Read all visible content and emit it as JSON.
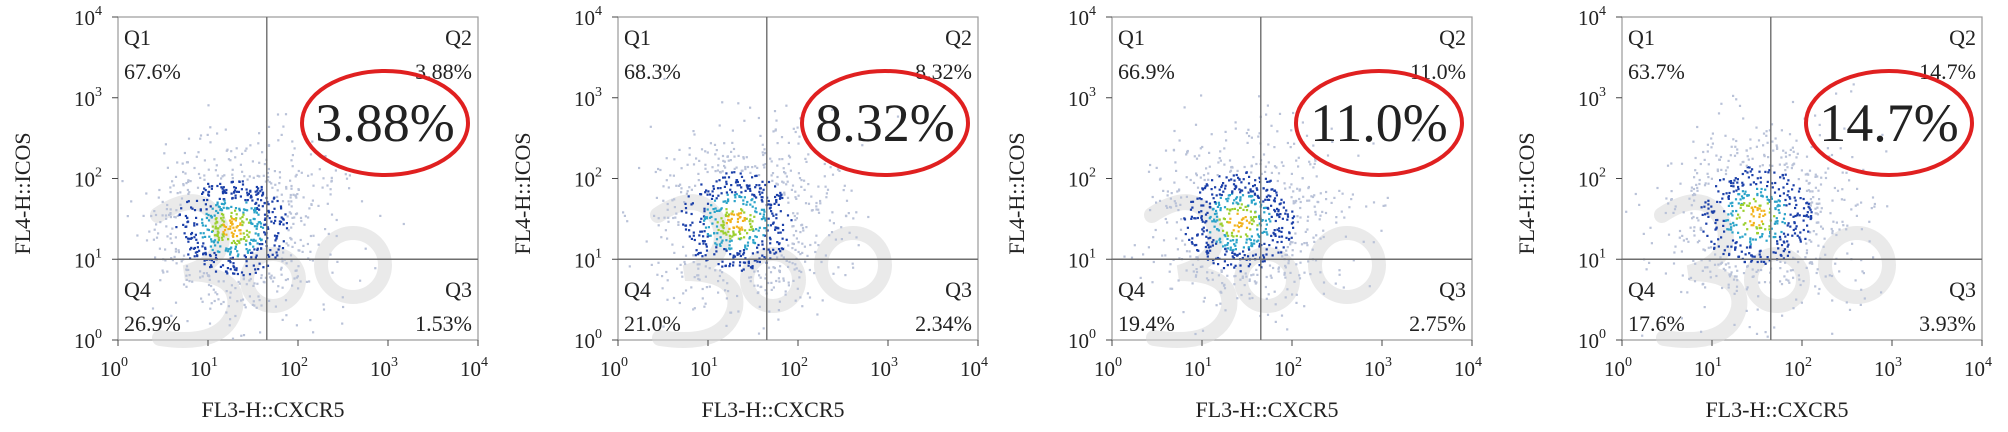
{
  "chart_data": [
    {
      "type": "scatter",
      "scale": "log",
      "xlabel": "FL3-H::CXCR5",
      "ylabel": "FL4-H::ICOS",
      "xlim": [
        1,
        10000
      ],
      "ylim": [
        1,
        10000
      ],
      "x_ticks": [
        {
          "base": "10",
          "exp": "0"
        },
        {
          "base": "10",
          "exp": "1"
        },
        {
          "base": "10",
          "exp": "2"
        },
        {
          "base": "10",
          "exp": "3"
        },
        {
          "base": "10",
          "exp": "4"
        }
      ],
      "y_ticks": [
        {
          "base": "10",
          "exp": "0"
        },
        {
          "base": "10",
          "exp": "1"
        },
        {
          "base": "10",
          "exp": "2"
        },
        {
          "base": "10",
          "exp": "3"
        },
        {
          "base": "10",
          "exp": "4"
        }
      ],
      "gate": {
        "x": 45,
        "y": 10
      },
      "quadrants": [
        {
          "id": "Q1",
          "value": "67.6%"
        },
        {
          "id": "Q2",
          "value": "3.88%"
        },
        {
          "id": "Q4",
          "value": "26.9%"
        },
        {
          "id": "Q3",
          "value": "1.53%"
        }
      ],
      "highlight": "3.88%",
      "cluster": {
        "x": 18,
        "y": 25,
        "n": 900,
        "spread": 0.42
      }
    },
    {
      "type": "scatter",
      "scale": "log",
      "xlabel": "FL3-H::CXCR5",
      "ylabel": "FL4-H::ICOS",
      "xlim": [
        1,
        10000
      ],
      "ylim": [
        1,
        10000
      ],
      "x_ticks": [
        {
          "base": "10",
          "exp": "0"
        },
        {
          "base": "10",
          "exp": "1"
        },
        {
          "base": "10",
          "exp": "2"
        },
        {
          "base": "10",
          "exp": "3"
        },
        {
          "base": "10",
          "exp": "4"
        }
      ],
      "y_ticks": [
        {
          "base": "10",
          "exp": "0"
        },
        {
          "base": "10",
          "exp": "1"
        },
        {
          "base": "10",
          "exp": "2"
        },
        {
          "base": "10",
          "exp": "3"
        },
        {
          "base": "10",
          "exp": "4"
        }
      ],
      "gate": {
        "x": 45,
        "y": 10
      },
      "quadrants": [
        {
          "id": "Q1",
          "value": "68.3%"
        },
        {
          "id": "Q2",
          "value": "8.32%"
        },
        {
          "id": "Q4",
          "value": "21.0%"
        },
        {
          "id": "Q3",
          "value": "2.34%"
        }
      ],
      "highlight": "8.32%",
      "cluster": {
        "x": 20,
        "y": 30,
        "n": 850,
        "spread": 0.45
      }
    },
    {
      "type": "scatter",
      "scale": "log",
      "xlabel": "FL3-H::CXCR5",
      "ylabel": "FL4-H::ICOS",
      "xlim": [
        1,
        10000
      ],
      "ylim": [
        1,
        10000
      ],
      "x_ticks": [
        {
          "base": "10",
          "exp": "0"
        },
        {
          "base": "10",
          "exp": "1"
        },
        {
          "base": "10",
          "exp": "2"
        },
        {
          "base": "10",
          "exp": "3"
        },
        {
          "base": "10",
          "exp": "4"
        }
      ],
      "y_ticks": [
        {
          "base": "10",
          "exp": "0"
        },
        {
          "base": "10",
          "exp": "1"
        },
        {
          "base": "10",
          "exp": "2"
        },
        {
          "base": "10",
          "exp": "3"
        },
        {
          "base": "10",
          "exp": "4"
        }
      ],
      "gate": {
        "x": 45,
        "y": 10
      },
      "quadrants": [
        {
          "id": "Q1",
          "value": "66.9%"
        },
        {
          "id": "Q2",
          "value": "11.0%"
        },
        {
          "id": "Q4",
          "value": "19.4%"
        },
        {
          "id": "Q3",
          "value": "2.75%"
        }
      ],
      "highlight": "11.0%",
      "cluster": {
        "x": 25,
        "y": 30,
        "n": 850,
        "spread": 0.45
      }
    },
    {
      "type": "scatter",
      "scale": "log",
      "xlabel": "FL3-H::CXCR5",
      "ylabel": "FL4-H::ICOS",
      "xlim": [
        1,
        10000
      ],
      "ylim": [
        1,
        10000
      ],
      "x_ticks": [
        {
          "base": "10",
          "exp": "0"
        },
        {
          "base": "10",
          "exp": "1"
        },
        {
          "base": "10",
          "exp": "2"
        },
        {
          "base": "10",
          "exp": "3"
        },
        {
          "base": "10",
          "exp": "4"
        }
      ],
      "y_ticks": [
        {
          "base": "10",
          "exp": "0"
        },
        {
          "base": "10",
          "exp": "1"
        },
        {
          "base": "10",
          "exp": "2"
        },
        {
          "base": "10",
          "exp": "3"
        },
        {
          "base": "10",
          "exp": "4"
        }
      ],
      "gate": {
        "x": 45,
        "y": 10
      },
      "quadrants": [
        {
          "id": "Q1",
          "value": "63.7%"
        },
        {
          "id": "Q2",
          "value": "14.7%"
        },
        {
          "id": "Q4",
          "value": "17.6%"
        },
        {
          "id": "Q3",
          "value": "3.93%"
        }
      ],
      "highlight": "14.7%",
      "cluster": {
        "x": 30,
        "y": 35,
        "n": 800,
        "spread": 0.48
      }
    }
  ],
  "colors": {
    "gate_line": "#6e6e6e",
    "highlight_ellipse": "#e02020",
    "dot_low": "#1b3fa8",
    "dot_mid": "#2aa3c9",
    "dot_high": "#9bcf2e",
    "dot_peak": "#f2b21b",
    "watermark": "#d9d9d9"
  }
}
